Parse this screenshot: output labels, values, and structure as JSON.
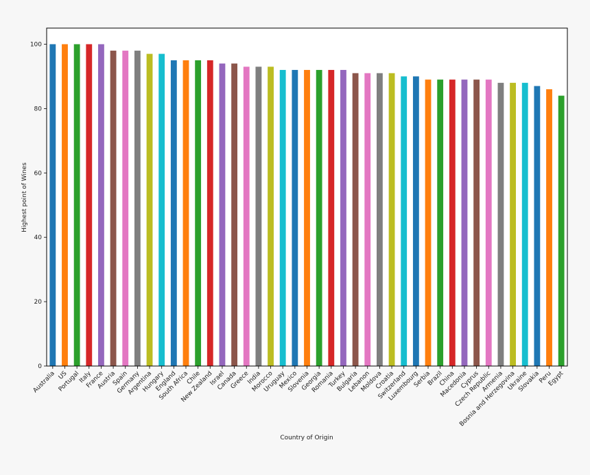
{
  "chart_data": {
    "type": "bar",
    "title": "",
    "xlabel": "Country of Origin",
    "ylabel": "Highest point of Wines",
    "ylim": [
      0,
      105
    ],
    "yticks": [
      0,
      20,
      40,
      60,
      80,
      100
    ],
    "grid": false,
    "legend": "none",
    "categories": [
      "Australia",
      "US",
      "Portugal",
      "Italy",
      "France",
      "Austria",
      "Spain",
      "Germany",
      "Argentina",
      "Hungary",
      "England",
      "South Africa",
      "Chile",
      "New Zealand",
      "Israel",
      "Canada",
      "Greece",
      "India",
      "Morocco",
      "Uruguay",
      "Mexico",
      "Slovenia",
      "Georgia",
      "Romania",
      "Turkey",
      "Bulgaria",
      "Lebanon",
      "Moldova",
      "Croatia",
      "Switzerland",
      "Luxembourg",
      "Serbia",
      "Brazil",
      "China",
      "Macedonia",
      "Cyprus",
      "Czech Republic",
      "Armenia",
      "Bosnia and Herzegovina",
      "Ukraine",
      "Slovakia",
      "Peru",
      "Egypt"
    ],
    "values": [
      100,
      100,
      100,
      100,
      100,
      98,
      98,
      98,
      97,
      97,
      95,
      95,
      95,
      95,
      94,
      94,
      93,
      93,
      93,
      92,
      92,
      92,
      92,
      92,
      92,
      91,
      91,
      91,
      91,
      90,
      90,
      89,
      89,
      89,
      89,
      89,
      89,
      88,
      88,
      88,
      87,
      86,
      84
    ],
    "bar_colors": [
      "#1f77b4",
      "#ff7f0e",
      "#2ca02c",
      "#d62728",
      "#9467bd",
      "#8c564b",
      "#e377c2",
      "#7f7f7f",
      "#bcbd22",
      "#17becf"
    ]
  }
}
